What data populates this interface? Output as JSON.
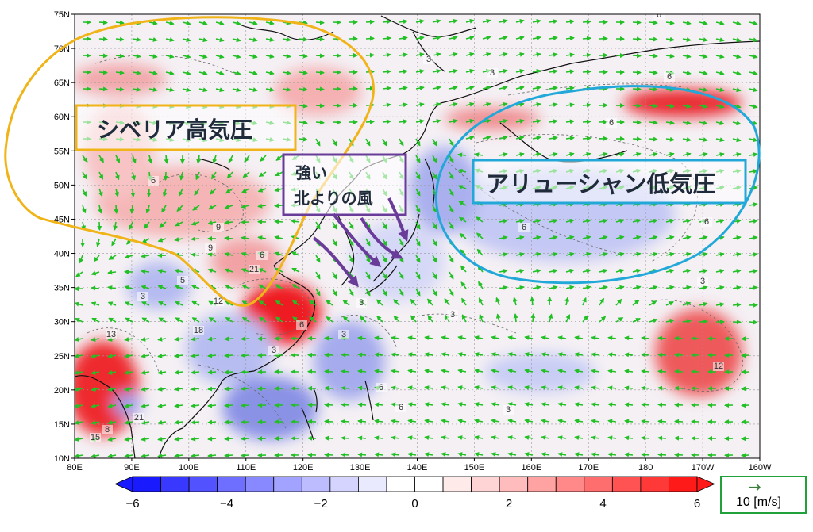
{
  "map": {
    "lat_ticks": [
      "75N",
      "70N",
      "65N",
      "60N",
      "55N",
      "50N",
      "45N",
      "40N",
      "35N",
      "30N",
      "25N",
      "20N",
      "15N",
      "10N"
    ],
    "lon_ticks": [
      "80E",
      "90E",
      "100E",
      "110E",
      "120E",
      "130E",
      "140E",
      "150E",
      "160E",
      "170E",
      "180",
      "170W",
      "160W"
    ],
    "extent": {
      "lon_min": 80,
      "lon_max": 200,
      "lat_min": 10,
      "lat_max": 75
    },
    "vector_color": "#22c025",
    "coast_color": "#111111"
  },
  "annotations": {
    "siberian_high": "シベリア高気圧",
    "aleutian_low": "アリューシャン低気圧",
    "strong_wind_line1": "強い",
    "strong_wind_line2": "北よりの風"
  },
  "annotation_colors": {
    "siberian_high": "#f0b419",
    "aleutian_low": "#21a8d8",
    "wind": "#6a3c9a"
  },
  "contour_labels": [
    "6",
    "3",
    "6",
    "6",
    "9",
    "6",
    "9",
    "21",
    "3",
    "12",
    "18",
    "13",
    "6",
    "3",
    "5",
    "21",
    "8",
    "15",
    "3",
    "6",
    "3",
    "3",
    "6",
    "6",
    "6",
    "3",
    "12",
    "6",
    "3",
    "3"
  ],
  "colorbar": {
    "ticks": [
      "−6",
      "−4",
      "−2",
      "0",
      "2",
      "4",
      "6"
    ],
    "min": -6,
    "max": 6,
    "colors": [
      "#1a1aff",
      "#3838ff",
      "#5252ff",
      "#6e6eff",
      "#8888ff",
      "#a2a2ff",
      "#bcbcff",
      "#d4d4ff",
      "#eaeaff",
      "#ffffff",
      "#ffffff",
      "#ffeaea",
      "#ffd4d4",
      "#ffbcbc",
      "#ffa2a2",
      "#ff8888",
      "#ff6e6e",
      "#ff5252",
      "#ff3838",
      "#ff1a1a"
    ]
  },
  "reference_vector": {
    "arrow": "→",
    "label": "10 [m/s]"
  }
}
